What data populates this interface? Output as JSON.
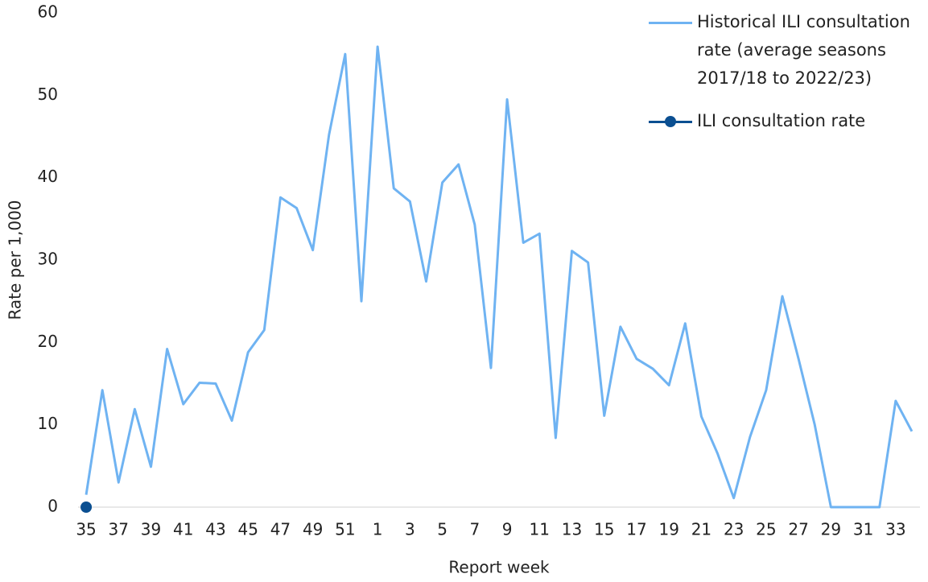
{
  "chart_data": {
    "type": "line",
    "x_label": "Report week",
    "y_label": "Rate per 1,000",
    "categories": [
      "35",
      null,
      "37",
      null,
      "39",
      null,
      "41",
      null,
      "43",
      null,
      "45",
      null,
      "47",
      null,
      "49",
      null,
      "51",
      null,
      "1",
      null,
      "3",
      null,
      "5",
      null,
      "7",
      null,
      "9",
      null,
      "11",
      null,
      "13",
      null,
      "15",
      null,
      "17",
      null,
      "19",
      null,
      "21",
      null,
      "23",
      null,
      "25",
      null,
      "27",
      null,
      "29",
      null,
      "31",
      null,
      "33",
      null
    ],
    "series": [
      {
        "name": "Historical ILI consultation rate (average seasons 2017/18 to 2022/23)",
        "color": "#6fb3f2",
        "markers": false,
        "values": [
          1.5,
          14.2,
          3.0,
          11.9,
          4.9,
          19.2,
          12.5,
          15.1,
          15.0,
          10.5,
          18.8,
          21.5,
          37.6,
          36.3,
          31.2,
          45.2,
          55.0,
          25.0,
          55.9,
          38.7,
          37.1,
          27.4,
          39.4,
          41.6,
          34.3,
          16.9,
          49.5,
          32.1,
          33.2,
          8.4,
          31.1,
          29.7,
          11.1,
          21.9,
          18.0,
          16.8,
          14.8,
          22.3,
          11.0,
          6.5,
          1.1,
          8.5,
          14.2,
          25.6,
          18.0,
          10.0,
          0,
          0,
          0,
          0,
          12.9,
          9.2
        ]
      },
      {
        "name": "ILI consultation rate",
        "color": "#0b4f91",
        "markers": true,
        "values": [
          0,
          null,
          null,
          null,
          null,
          null,
          null,
          null,
          null,
          null,
          null,
          null,
          null,
          null,
          null,
          null,
          null,
          null,
          null,
          null,
          null,
          null,
          null,
          null,
          null,
          null,
          null,
          null,
          null,
          null,
          null,
          null,
          null,
          null,
          null,
          null,
          null,
          null,
          null,
          null,
          null,
          null,
          null,
          null,
          null,
          null,
          null,
          null,
          null,
          null,
          null,
          null
        ]
      }
    ],
    "ylim": [
      0,
      60
    ],
    "yticks": [
      0,
      10,
      20,
      30,
      40,
      50,
      60
    ],
    "grid": false
  }
}
